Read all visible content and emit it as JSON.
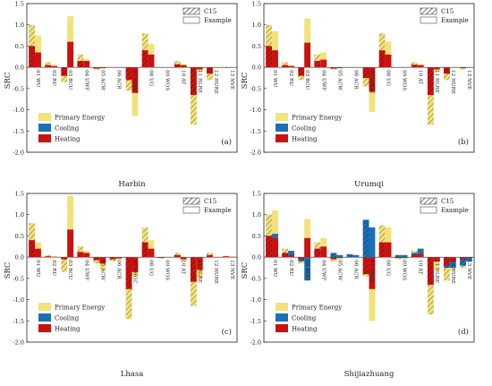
{
  "chart_data": [
    {
      "type": "bar",
      "panel_label": "(a)",
      "xlabel": "Harbin",
      "ylabel": "SRC",
      "categories": [
        "01 WU",
        "02 RU",
        "03 BCU",
        "04 UWF",
        "05 ACW",
        "06 ACR",
        "07 SHGC",
        "08 UG",
        "09 WOS",
        "10 AT",
        "11 HLRE",
        "12 HURE",
        "13 NVE"
      ],
      "ylim": [
        -2.0,
        1.5
      ],
      "yticks": [
        "-2.0",
        "-1.5",
        "-1.0",
        "-0.5",
        "0.0",
        "0.5",
        "1.0",
        "1.5"
      ],
      "series": [
        {
          "name": "Primary Energy",
          "color": "#f2e27a",
          "c15": [
            1.0,
            0.12,
            -0.35,
            0.3,
            -0.05,
            0,
            -0.55,
            0.8,
            0,
            0.15,
            -1.35,
            -0.3,
            -0.02
          ],
          "example": [
            0.75,
            0.05,
            1.2,
            0.2,
            -0.03,
            0,
            -1.15,
            0.55,
            0,
            0.08,
            -0.1,
            -0.02,
            0
          ]
        },
        {
          "name": "Cooling",
          "color": "#1a6fb5",
          "c15": [
            0,
            0,
            0,
            0,
            0,
            0,
            0,
            0,
            0,
            0,
            0,
            0,
            0
          ],
          "example": [
            0,
            0,
            0,
            0,
            0,
            0,
            0,
            0,
            0,
            0,
            0,
            0,
            0
          ]
        },
        {
          "name": "Heating",
          "color": "#cc1111",
          "c15": [
            0.5,
            0.05,
            -0.2,
            0.15,
            -0.03,
            0,
            -0.3,
            0.4,
            0,
            0.07,
            -0.65,
            -0.15,
            -0.01
          ],
          "example": [
            0.35,
            0.03,
            0.6,
            0.15,
            -0.02,
            0,
            -0.6,
            0.3,
            0,
            0.05,
            -0.05,
            -0.01,
            0
          ]
        }
      ]
    },
    {
      "type": "bar",
      "panel_label": "(b)",
      "xlabel": "Urumqi",
      "ylabel": "SRC",
      "categories": [
        "01 WU",
        "02 RU",
        "03 BCU",
        "04 UWF",
        "05 ACW",
        "06 ACR",
        "07 SHGC",
        "08 UG",
        "09 WOS",
        "10 AT",
        "11 HLRE",
        "12 HURE",
        "13 NVE"
      ],
      "ylim": [
        -2.0,
        1.5
      ],
      "yticks": [
        "-2.0",
        "-1.5",
        "-1.0",
        "-0.5",
        "0.0",
        "0.5",
        "1.0",
        "1.5"
      ],
      "series": [
        {
          "name": "Primary Energy",
          "color": "#f2e27a",
          "c15": [
            1.0,
            0.12,
            -0.3,
            0.3,
            -0.05,
            0,
            -0.45,
            0.8,
            0,
            0.12,
            -1.35,
            -0.3,
            -0.05
          ],
          "example": [
            0.85,
            0.05,
            1.15,
            0.35,
            -0.03,
            0,
            -1.05,
            0.6,
            0,
            0.08,
            -0.1,
            -0.02,
            0
          ]
        },
        {
          "name": "Cooling",
          "color": "#1a6fb5",
          "c15": [
            0,
            0,
            0,
            0,
            0,
            0,
            0,
            0,
            0,
            0,
            0,
            0,
            0
          ],
          "example": [
            0,
            0,
            0,
            0,
            0,
            0,
            0,
            0,
            0,
            0,
            0,
            0,
            0
          ]
        },
        {
          "name": "Heating",
          "color": "#cc1111",
          "c15": [
            0.5,
            0.05,
            -0.2,
            0.15,
            -0.03,
            0,
            -0.25,
            0.4,
            0,
            0.06,
            -0.65,
            -0.15,
            -0.02
          ],
          "example": [
            0.4,
            0.03,
            0.58,
            0.18,
            -0.02,
            0,
            -0.58,
            0.3,
            0,
            0.05,
            -0.05,
            -0.01,
            0
          ]
        }
      ]
    },
    {
      "type": "bar",
      "panel_label": "(c)",
      "xlabel": "Lhasa",
      "ylabel": "SRC",
      "categories": [
        "01 WU",
        "02 RU",
        "03 BCU",
        "04 UWF",
        "05 ACW",
        "06 ACR",
        "07 SHGC",
        "08 UG",
        "09 WOS",
        "10 AT",
        "11 HLRE",
        "12 HURE",
        "13 NVE"
      ],
      "ylim": [
        -2.0,
        1.5
      ],
      "yticks": [
        "-2.0",
        "-1.5",
        "-1.0",
        "-0.5",
        "0.0",
        "0.5",
        "1.0",
        "1.5"
      ],
      "series": [
        {
          "name": "Primary Energy",
          "color": "#f2e27a",
          "c15": [
            0.8,
            0.05,
            -0.35,
            0.25,
            -0.15,
            -0.1,
            -1.45,
            0.7,
            -0.03,
            0.1,
            -1.15,
            0.1,
            0.03
          ],
          "example": [
            0.35,
            0.02,
            1.45,
            0.15,
            -0.3,
            -0.05,
            -0.45,
            0.4,
            -0.02,
            -0.1,
            -0.5,
            -0.02,
            0.01
          ]
        },
        {
          "name": "Cooling",
          "color": "#1a6fb5",
          "c15": [
            0,
            0,
            0,
            0,
            0,
            0,
            0,
            0,
            0,
            0,
            0,
            0,
            0
          ],
          "example": [
            0,
            0,
            0,
            0,
            0,
            0,
            0,
            0,
            0,
            0,
            0,
            0,
            0
          ]
        },
        {
          "name": "Heating",
          "color": "#cc1111",
          "c15": [
            0.4,
            0.02,
            -0.05,
            0.12,
            -0.07,
            -0.05,
            -0.75,
            0.35,
            -0.02,
            0.05,
            -0.58,
            0.05,
            0.02
          ],
          "example": [
            0.2,
            0.01,
            0.65,
            0.1,
            -0.15,
            -0.03,
            -0.35,
            0.2,
            -0.01,
            -0.05,
            -0.3,
            -0.01,
            0.01
          ]
        }
      ]
    },
    {
      "type": "bar",
      "panel_label": "(d)",
      "xlabel": "Shijiazhuang",
      "ylabel": "SRC",
      "categories": [
        "01 WU",
        "02 RU",
        "03 BCU",
        "04 UWF",
        "05 ACW",
        "06 ACR",
        "07 SHGC",
        "08 UG",
        "09 WOS",
        "10 AT",
        "11 HLRE",
        "12 HURE",
        "13 NVE"
      ],
      "ylim": [
        -2.0,
        1.5
      ],
      "yticks": [
        "-2.0",
        "-1.5",
        "-1.0",
        "-0.5",
        "0.0",
        "0.5",
        "1.0",
        "1.5"
      ],
      "series": [
        {
          "name": "Primary Energy",
          "color": "#f2e27a",
          "c15": [
            1.0,
            0.2,
            -0.15,
            0.35,
            -0.1,
            0,
            -0.45,
            0.75,
            -0.05,
            0.15,
            -1.35,
            -0.55,
            -0.25
          ],
          "example": [
            1.1,
            0.15,
            0.9,
            0.45,
            -0.05,
            0,
            -1.5,
            0.7,
            -0.05,
            0.2,
            -0.3,
            -0.3,
            -0.1
          ]
        },
        {
          "name": "Cooling",
          "color": "#1a6fb5",
          "c15": [
            0.5,
            0.05,
            -0.1,
            0.1,
            0.1,
            0.07,
            0.88,
            0.05,
            0.05,
            0.1,
            -0.1,
            -0.25,
            -0.2
          ],
          "example": [
            0.55,
            0.15,
            -0.55,
            0.15,
            0.05,
            0.05,
            0.7,
            0.05,
            0.05,
            0.2,
            -0.1,
            -0.25,
            -0.1
          ]
        },
        {
          "name": "Heating",
          "color": "#cc1111",
          "c15": [
            0.5,
            0.1,
            -0.05,
            0.2,
            -0.05,
            0,
            -0.4,
            0.35,
            -0.02,
            0.05,
            -0.65,
            -0.2,
            -0.05
          ],
          "example": [
            0.45,
            0.05,
            0.45,
            0.25,
            -0.02,
            0,
            -0.75,
            0.35,
            -0.02,
            0.08,
            -0.1,
            -0.1,
            -0.02
          ]
        }
      ]
    }
  ],
  "legend_c15": "C15",
  "legend_example": "Example"
}
